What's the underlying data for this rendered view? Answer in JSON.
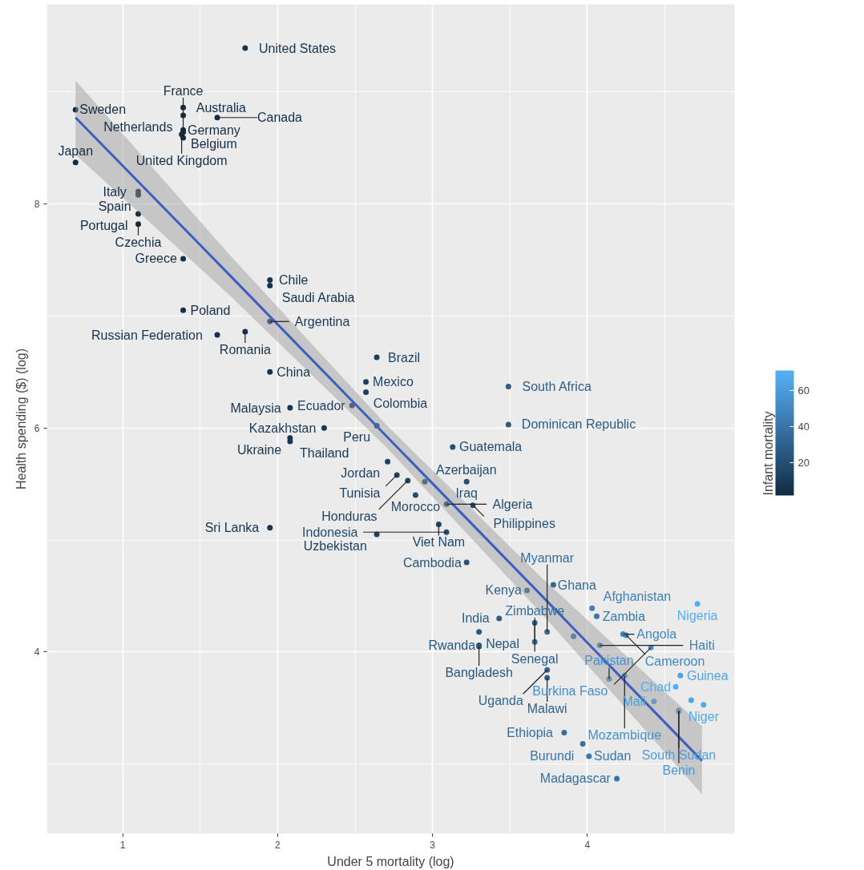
{
  "chart_data": {
    "type": "scatter",
    "xlabel": "Under 5 mortality (log)",
    "ylabel": "Health spending ($) (log)",
    "clabel": "Infant mortality",
    "xlim": [
      0.51,
      4.95
    ],
    "ylim": [
      2.38,
      9.78
    ],
    "xticks": [
      1,
      2,
      3,
      4
    ],
    "yticks": [
      4,
      6,
      8
    ],
    "clim": [
      2,
      71
    ],
    "cticks": [
      20,
      40,
      60
    ],
    "grid": true,
    "series": [
      {
        "marker": "circle",
        "x": [
          1.79,
          0.695,
          1.39,
          1.39,
          1.39,
          1.39,
          1.38,
          1.39,
          1.61,
          0.695,
          1.1,
          1.1,
          1.1,
          1.1,
          1.39,
          1.95,
          1.95,
          1.39,
          1.95,
          1.61,
          1.79,
          2.64,
          1.95,
          2.57,
          2.57,
          3.49,
          2.08,
          2.48,
          2.3,
          2.64,
          3.49,
          2.08,
          2.08,
          3.13,
          2.71,
          2.77,
          2.84,
          2.95,
          2.89,
          3.22,
          3.09,
          3.26,
          3.04,
          3.09,
          1.95,
          2.64,
          3.22,
          3.61,
          3.78,
          3.43,
          3.3,
          3.66,
          4.03,
          4.06,
          3.74,
          3.91,
          4.23,
          4.25,
          4.41,
          3.3,
          3.3,
          3.66,
          3.74,
          3.74,
          4.08,
          4.14,
          4.24,
          4.6,
          4.57,
          4.43,
          4.67,
          4.75,
          4.59,
          4.59,
          4.71,
          3.85,
          3.97,
          4.01,
          4.19
        ],
        "values": [
          9.39,
          8.84,
          8.86,
          8.79,
          8.66,
          8.64,
          8.62,
          8.59,
          8.77,
          8.37,
          8.11,
          8.08,
          7.91,
          7.82,
          7.51,
          7.32,
          7.27,
          7.05,
          6.95,
          6.83,
          6.86,
          6.63,
          6.5,
          6.41,
          6.32,
          6.37,
          6.18,
          6.2,
          6.0,
          6.02,
          6.03,
          5.91,
          5.88,
          5.83,
          5.7,
          5.58,
          5.53,
          5.52,
          5.4,
          5.52,
          5.32,
          5.31,
          5.14,
          5.07,
          5.11,
          5.05,
          4.8,
          4.55,
          4.6,
          4.3,
          4.18,
          4.26,
          4.39,
          4.32,
          4.18,
          4.14,
          4.16,
          4.15,
          4.04,
          4.06,
          4.05,
          4.09,
          3.84,
          3.77,
          4.06,
          3.76,
          3.79,
          3.79,
          3.69,
          3.56,
          3.57,
          3.53,
          3.48,
          3.47,
          4.43,
          3.28,
          3.18,
          3.07,
          2.87
        ],
        "cvalues": [
          6,
          2,
          3,
          4,
          3,
          3,
          4,
          3,
          4,
          2,
          3,
          3,
          3,
          3,
          4,
          6,
          6,
          4,
          9,
          5,
          6,
          12,
          7,
          12,
          12,
          28,
          7,
          12,
          9,
          11,
          27,
          7,
          8,
          20,
          14,
          15,
          15,
          19,
          19,
          22,
          20,
          22,
          16,
          20,
          6,
          14,
          23,
          31,
          34,
          28,
          24,
          30,
          46,
          42,
          36,
          40,
          50,
          50,
          54,
          26,
          25,
          36,
          33,
          30,
          47,
          55,
          54,
          64,
          69,
          60,
          65,
          67,
          58,
          62,
          70,
          37,
          40,
          41,
          38
        ],
        "colors": [
          "#17334d",
          "#132b43",
          "#142d46",
          "#152f48",
          "#142d46",
          "#142d46",
          "#152f48",
          "#142d46",
          "#152f48",
          "#132b43",
          "#142d46",
          "#142d46",
          "#142d46",
          "#142d46",
          "#152f48",
          "#17334d",
          "#17334d",
          "#152f48",
          "#1a3955",
          "#16314b",
          "#17334d",
          "#1d3e5d",
          "#183550",
          "#1d3e5d",
          "#1d3e5d",
          "#2c5d87",
          "#183550",
          "#1d3e5d",
          "#1a3955",
          "#1c3c5a",
          "#2b5c84",
          "#183550",
          "#193753",
          "#244e72",
          "#1f4262",
          "#204465",
          "#204465",
          "#244c6f",
          "#244c6f",
          "#265277",
          "#244e72",
          "#265277",
          "#214668",
          "#244e72",
          "#17334d",
          "#1f4262",
          "#27547a",
          "#2f638f",
          "#326996",
          "#2c5d87",
          "#28567c",
          "#2e618c",
          "#3e80b6",
          "#3a79ab",
          "#346d9c",
          "#3875a6",
          "#4288c0",
          "#4288c0",
          "#4590cb",
          "#2a5a82",
          "#29587f",
          "#346d9c",
          "#316794",
          "#2e618c",
          "#3f82b8",
          "#4692cd",
          "#4590cb",
          "#4fa3e5",
          "#54adf2",
          "#4b9cda",
          "#50a5e7",
          "#52a9ed",
          "#4998d5",
          "#4da0e0",
          "#55aff4",
          "#356f9e",
          "#3875a6",
          "#3977a9",
          "#3671a1"
        ]
      },
      {
        "type": "line",
        "marker": "none",
        "color": "#3f5fbf",
        "x": [
          0.695,
          1.7,
          2.7,
          3.7,
          4.74
        ],
        "values": [
          8.77,
          7.35,
          5.93,
          4.51,
          3.03
        ],
        "lower": [
          8.44,
          7.17,
          5.83,
          4.35,
          2.73
        ],
        "upper": [
          9.1,
          7.53,
          6.03,
          4.67,
          3.34
        ]
      }
    ],
    "annotations": [
      {
        "text": "United States",
        "x": 1.79,
        "y": 9.39
      },
      {
        "text": "Sweden",
        "x": 0.695,
        "y": 8.84
      },
      {
        "text": "Australia",
        "x": 1.39,
        "y": 8.86
      },
      {
        "text": "Netherlands",
        "x": 1.39,
        "y": 8.79
      },
      {
        "text": "Germany",
        "x": 1.39,
        "y": 8.66
      },
      {
        "text": "Belgium",
        "x": 1.39,
        "y": 8.64
      },
      {
        "text": "United Kingdom",
        "x": 1.38,
        "y": 8.62
      },
      {
        "text": "France",
        "x": 1.39,
        "y": 8.59
      },
      {
        "text": "Canada",
        "x": 1.61,
        "y": 8.77
      },
      {
        "text": "Japan",
        "x": 0.695,
        "y": 8.37
      },
      {
        "text": "Italy",
        "x": 1.1,
        "y": 8.11
      },
      {
        "text": "Spain",
        "x": 1.1,
        "y": 8.08
      },
      {
        "text": "Portugal",
        "x": 1.1,
        "y": 7.91
      },
      {
        "text": "Czechia",
        "x": 1.1,
        "y": 7.82
      },
      {
        "text": "Greece",
        "x": 1.39,
        "y": 7.51
      },
      {
        "text": "Chile",
        "x": 1.95,
        "y": 7.32
      },
      {
        "text": "Saudi Arabia",
        "x": 1.95,
        "y": 7.27
      },
      {
        "text": "Poland",
        "x": 1.39,
        "y": 7.05
      },
      {
        "text": "Argentina",
        "x": 1.95,
        "y": 6.95
      },
      {
        "text": "Russian Federation",
        "x": 1.61,
        "y": 6.83
      },
      {
        "text": "Romania",
        "x": 1.79,
        "y": 6.86
      },
      {
        "text": "Brazil",
        "x": 2.64,
        "y": 6.63
      },
      {
        "text": "China",
        "x": 1.95,
        "y": 6.5
      },
      {
        "text": "Mexico",
        "x": 2.57,
        "y": 6.41
      },
      {
        "text": "Colombia",
        "x": 2.57,
        "y": 6.32
      },
      {
        "text": "South Africa",
        "x": 3.49,
        "y": 6.37
      },
      {
        "text": "Malaysia",
        "x": 2.08,
        "y": 6.18
      },
      {
        "text": "Ecuador",
        "x": 2.48,
        "y": 6.2
      },
      {
        "text": "Kazakhstan",
        "x": 2.3,
        "y": 6.0
      },
      {
        "text": "Peru",
        "x": 2.64,
        "y": 6.02
      },
      {
        "text": "Dominican Republic",
        "x": 3.49,
        "y": 6.03
      },
      {
        "text": "Ukraine",
        "x": 2.08,
        "y": 5.91
      },
      {
        "text": "Thailand",
        "x": 2.08,
        "y": 5.88
      },
      {
        "text": "Guatemala",
        "x": 3.13,
        "y": 5.83
      },
      {
        "text": "Jordan",
        "x": 2.71,
        "y": 5.7
      },
      {
        "text": "Tunisia",
        "x": 2.77,
        "y": 5.58
      },
      {
        "text": "Honduras",
        "x": 2.84,
        "y": 5.53
      },
      {
        "text": "Azerbaijan",
        "x": 2.95,
        "y": 5.52
      },
      {
        "text": "Morocco",
        "x": 2.89,
        "y": 5.4
      },
      {
        "text": "Iraq",
        "x": 3.22,
        "y": 5.52
      },
      {
        "text": "Algeria",
        "x": 3.09,
        "y": 5.32
      },
      {
        "text": "Philippines",
        "x": 3.26,
        "y": 5.31
      },
      {
        "text": "Viet Nam",
        "x": 3.04,
        "y": 5.14
      },
      {
        "text": "Indonesia",
        "x": 3.09,
        "y": 5.07
      },
      {
        "text": "Sri Lanka",
        "x": 1.95,
        "y": 5.11
      },
      {
        "text": "Uzbekistan",
        "x": 2.64,
        "y": 5.05
      },
      {
        "text": "Cambodia",
        "x": 3.22,
        "y": 4.8
      },
      {
        "text": "Kenya",
        "x": 3.61,
        "y": 4.55
      },
      {
        "text": "Ghana",
        "x": 3.78,
        "y": 4.6
      },
      {
        "text": "India",
        "x": 3.43,
        "y": 4.3
      },
      {
        "text": "Nepal",
        "x": 3.3,
        "y": 4.18
      },
      {
        "text": "Senegal",
        "x": 3.66,
        "y": 4.26
      },
      {
        "text": "Afghanistan",
        "x": 4.03,
        "y": 4.39
      },
      {
        "text": "Zambia",
        "x": 4.06,
        "y": 4.32
      },
      {
        "text": "Myanmar",
        "x": 3.74,
        "y": 4.18
      },
      {
        "text": "Angola",
        "x": 4.23,
        "y": 4.16
      },
      {
        "text": "Cameroon",
        "x": 4.25,
        "y": 4.15
      },
      {
        "text": "Burkina Faso",
        "x": 4.41,
        "y": 4.04
      },
      {
        "text": "Rwanda",
        "x": 3.3,
        "y": 4.06
      },
      {
        "text": "Bangladesh",
        "x": 3.3,
        "y": 4.05
      },
      {
        "text": "Zimbabwe",
        "x": 3.66,
        "y": 4.09
      },
      {
        "text": "Uganda",
        "x": 3.74,
        "y": 3.84
      },
      {
        "text": "Malawi",
        "x": 3.74,
        "y": 3.77
      },
      {
        "text": "Haiti",
        "x": 4.08,
        "y": 4.06
      },
      {
        "text": "Pakistan",
        "x": 4.14,
        "y": 3.76
      },
      {
        "text": "Mozambique",
        "x": 4.24,
        "y": 3.79
      },
      {
        "text": "Guinea",
        "x": 4.6,
        "y": 3.79
      },
      {
        "text": "Chad",
        "x": 4.57,
        "y": 3.69
      },
      {
        "text": "Mali",
        "x": 4.43,
        "y": 3.56
      },
      {
        "text": "Niger",
        "x": 4.75,
        "y": 3.53
      },
      {
        "text": "Benin",
        "x": 4.59,
        "y": 3.48
      },
      {
        "text": "South Sudan",
        "x": 4.59,
        "y": 3.47
      },
      {
        "text": "Nigeria",
        "x": 4.71,
        "y": 4.43
      },
      {
        "text": "Ethiopia",
        "x": 3.85,
        "y": 3.28
      },
      {
        "text": "Burundi",
        "x": 3.97,
        "y": 3.18
      },
      {
        "text": "Sudan",
        "x": 4.01,
        "y": 3.07
      },
      {
        "text": "Madagascar",
        "x": 4.19,
        "y": 2.87
      }
    ]
  }
}
